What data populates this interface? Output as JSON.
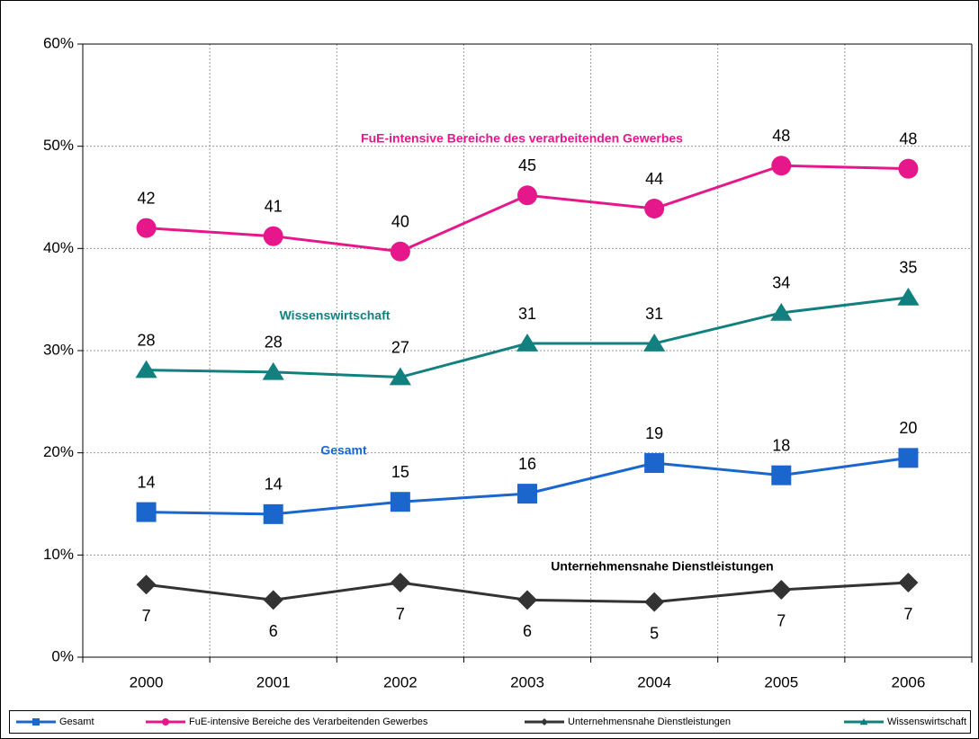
{
  "chart_data": {
    "type": "line",
    "categories": [
      "2000",
      "2001",
      "2002",
      "2003",
      "2004",
      "2005",
      "2006"
    ],
    "series": [
      {
        "name": "Gesamt",
        "color": "#1a66cc",
        "marker": "square",
        "label_side": "above",
        "values": [
          14.2,
          14.0,
          15.2,
          16.0,
          19.0,
          17.8,
          19.5
        ],
        "value_labels": [
          "14",
          "14",
          "15",
          "16",
          "19",
          "18",
          "20"
        ]
      },
      {
        "name": "FuE-intensive Bereiche des Verarbeitenden Gewerbes",
        "color": "#e6178b",
        "marker": "circle",
        "label_side": "above",
        "values": [
          42.0,
          41.2,
          39.7,
          45.2,
          43.9,
          48.1,
          47.8
        ],
        "value_labels": [
          "42",
          "41",
          "40",
          "45",
          "44",
          "48",
          "48"
        ]
      },
      {
        "name": "Unternehmensnahe Dienstleistungen",
        "color": "#333333",
        "marker": "diamond",
        "label_side": "below",
        "values": [
          7.1,
          5.6,
          7.3,
          5.6,
          5.4,
          6.6,
          7.3
        ],
        "value_labels": [
          "7",
          "6",
          "7",
          "6",
          "5",
          "7",
          "7"
        ]
      },
      {
        "name": "Wissenswirtschaft",
        "color": "#138080",
        "marker": "triangle",
        "label_side": "above",
        "values": [
          28.1,
          27.9,
          27.4,
          30.7,
          30.7,
          33.7,
          35.2
        ],
        "value_labels": [
          "28",
          "28",
          "27",
          "31",
          "31",
          "34",
          "35"
        ]
      }
    ],
    "annotations": [
      {
        "text": "FuE-intensive Bereiche des verarbeitenden Gewerbes",
        "color": "#e6178b"
      },
      {
        "text": "Wissenswirtschaft",
        "color": "#138080"
      },
      {
        "text": "Gesamt",
        "color": "#1a66cc"
      },
      {
        "text": "Unternehmensnahe Dienstleistungen",
        "color": "#000000"
      }
    ],
    "ylim": [
      0,
      60
    ],
    "yticks": [
      {
        "value": 0,
        "label": "0%"
      },
      {
        "value": 10,
        "label": "10%"
      },
      {
        "value": 20,
        "label": "20%"
      },
      {
        "value": 30,
        "label": "30%"
      },
      {
        "value": 40,
        "label": "40%"
      },
      {
        "value": 50,
        "label": "50%"
      },
      {
        "value": 60,
        "label": "60%"
      }
    ],
    "grid": true,
    "legend": "bottom"
  }
}
